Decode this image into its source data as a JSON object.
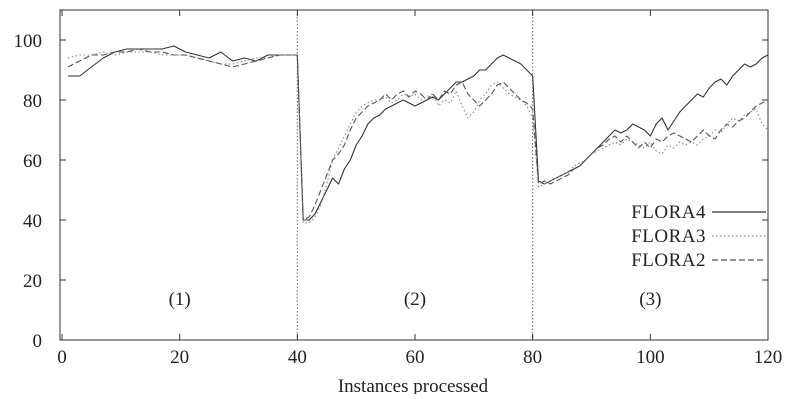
{
  "chart_data": {
    "type": "line",
    "title": "",
    "xlabel": "Instances processed",
    "ylabel": "",
    "xlim": [
      0,
      120
    ],
    "ylim": [
      0,
      110
    ],
    "x_ticks": [
      0,
      20,
      40,
      60,
      80,
      100,
      120
    ],
    "y_ticks": [
      0,
      20,
      40,
      60,
      80,
      100
    ],
    "x_tick_labels": [
      "0",
      "20",
      "40",
      "60",
      "80",
      "100",
      "120"
    ],
    "y_tick_labels": [
      "0",
      "20",
      "40",
      "60",
      "80",
      "100"
    ],
    "grid": false,
    "legend_position": "right",
    "phase_boundaries": [
      40,
      80
    ],
    "phases": [
      {
        "label": "(1)",
        "x": 20
      },
      {
        "label": "(2)",
        "x": 60
      },
      {
        "label": "(3)",
        "x": 100
      }
    ],
    "series": [
      {
        "name": "FLORA4",
        "color": "#333333",
        "dash": "solid",
        "x": [
          1,
          3,
          5,
          7,
          9,
          11,
          13,
          15,
          17,
          19,
          21,
          23,
          25,
          27,
          29,
          31,
          33,
          35,
          37,
          39,
          40,
          41,
          42,
          43,
          44,
          45,
          46,
          47,
          48,
          49,
          50,
          51,
          52,
          53,
          54,
          55,
          56,
          57,
          58,
          59,
          60,
          61,
          62,
          63,
          64,
          65,
          66,
          67,
          68,
          69,
          70,
          71,
          72,
          73,
          74,
          75,
          76,
          77,
          78,
          79,
          80,
          81,
          82,
          83,
          84,
          85,
          86,
          87,
          88,
          89,
          90,
          91,
          92,
          93,
          94,
          95,
          96,
          97,
          98,
          99,
          100,
          101,
          102,
          103,
          104,
          105,
          106,
          107,
          108,
          109,
          110,
          111,
          112,
          113,
          114,
          115,
          116,
          117,
          118,
          119,
          120
        ],
        "y": [
          88,
          88,
          91,
          94,
          96,
          97,
          97,
          97,
          97,
          98,
          96,
          95,
          94,
          96,
          93,
          94,
          93,
          95,
          95,
          95,
          95,
          40,
          40,
          42,
          46,
          50,
          54,
          52,
          57,
          60,
          65,
          68,
          72,
          74,
          75,
          77,
          78,
          79,
          80,
          79,
          78,
          79,
          80,
          81,
          80,
          82,
          84,
          86,
          86,
          87,
          88,
          90,
          90,
          92,
          94,
          95,
          94,
          93,
          92,
          90,
          88,
          53,
          52,
          53,
          54,
          55,
          56,
          57,
          58,
          60,
          62,
          64,
          66,
          68,
          70,
          69,
          70,
          72,
          71,
          70,
          68,
          72,
          74,
          70,
          73,
          76,
          78,
          80,
          82,
          81,
          84,
          86,
          87,
          85,
          88,
          90,
          92,
          91,
          92,
          94,
          95
        ]
      },
      {
        "name": "FLORA3",
        "color": "#888888",
        "dash": "dotted",
        "x": [
          1,
          3,
          5,
          7,
          9,
          11,
          13,
          15,
          17,
          19,
          21,
          23,
          25,
          27,
          29,
          31,
          33,
          35,
          37,
          39,
          40,
          41,
          42,
          43,
          44,
          45,
          46,
          47,
          48,
          49,
          50,
          51,
          52,
          53,
          54,
          55,
          56,
          57,
          58,
          59,
          60,
          61,
          62,
          63,
          64,
          65,
          66,
          67,
          68,
          69,
          70,
          71,
          72,
          73,
          74,
          75,
          76,
          77,
          78,
          79,
          80,
          81,
          82,
          83,
          84,
          85,
          86,
          87,
          88,
          89,
          90,
          91,
          92,
          93,
          94,
          95,
          96,
          97,
          98,
          99,
          100,
          101,
          102,
          103,
          104,
          105,
          106,
          107,
          108,
          109,
          110,
          111,
          112,
          113,
          114,
          115,
          116,
          117,
          118,
          119,
          120
        ],
        "y": [
          94,
          95,
          95,
          96,
          95,
          96,
          96,
          96,
          95,
          95,
          95,
          94,
          93,
          92,
          92,
          93,
          94,
          94,
          95,
          95,
          95,
          39,
          39,
          41,
          45,
          52,
          60,
          64,
          68,
          72,
          76,
          78,
          79,
          80,
          80,
          81,
          79,
          80,
          82,
          81,
          82,
          80,
          81,
          82,
          78,
          80,
          79,
          83,
          78,
          74,
          76,
          80,
          82,
          85,
          86,
          84,
          82,
          81,
          80,
          78,
          74,
          51,
          52,
          53,
          54,
          55,
          56,
          58,
          59,
          60,
          62,
          63,
          64,
          65,
          66,
          65,
          67,
          66,
          65,
          64,
          66,
          63,
          62,
          65,
          64,
          66,
          65,
          66,
          65,
          67,
          68,
          70,
          69,
          72,
          74,
          73,
          75,
          76,
          77,
          72,
          70
        ]
      },
      {
        "name": "FLORA2",
        "color": "#555555",
        "dash": "dashed",
        "x": [
          1,
          3,
          5,
          7,
          9,
          11,
          13,
          15,
          17,
          19,
          21,
          23,
          25,
          27,
          29,
          31,
          33,
          35,
          37,
          39,
          40,
          41,
          42,
          43,
          44,
          45,
          46,
          47,
          48,
          49,
          50,
          51,
          52,
          53,
          54,
          55,
          56,
          57,
          58,
          59,
          60,
          61,
          62,
          63,
          64,
          65,
          66,
          67,
          68,
          69,
          70,
          71,
          72,
          73,
          74,
          75,
          76,
          77,
          78,
          79,
          80,
          81,
          82,
          83,
          84,
          85,
          86,
          87,
          88,
          89,
          90,
          91,
          92,
          93,
          94,
          95,
          96,
          97,
          98,
          99,
          100,
          101,
          102,
          103,
          104,
          105,
          106,
          107,
          108,
          109,
          110,
          111,
          112,
          113,
          114,
          115,
          116,
          117,
          118,
          119,
          120
        ],
        "y": [
          91,
          93,
          95,
          95,
          96,
          96,
          97,
          96,
          96,
          95,
          95,
          94,
          93,
          92,
          91,
          92,
          93,
          94,
          95,
          95,
          95,
          40,
          41,
          45,
          50,
          55,
          60,
          62,
          65,
          70,
          74,
          76,
          78,
          79,
          80,
          82,
          80,
          82,
          83,
          81,
          83,
          82,
          80,
          82,
          80,
          83,
          82,
          85,
          86,
          82,
          80,
          78,
          80,
          82,
          85,
          86,
          84,
          82,
          80,
          79,
          77,
          52,
          53,
          52,
          53,
          54,
          55,
          57,
          58,
          60,
          62,
          64,
          65,
          67,
          68,
          66,
          68,
          66,
          64,
          66,
          64,
          67,
          66,
          68,
          69,
          68,
          67,
          66,
          68,
          70,
          68,
          67,
          70,
          72,
          71,
          73,
          74,
          76,
          78,
          79,
          80
        ]
      }
    ]
  }
}
